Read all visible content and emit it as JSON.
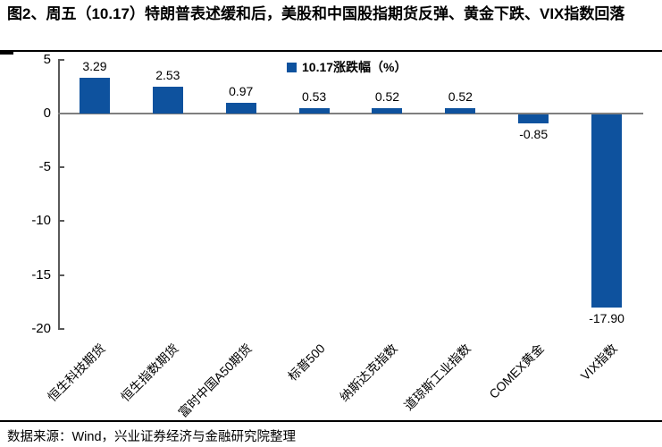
{
  "title": "图2、周五（10.17）特朗普表述缓和后，美股和中国股指期货反弹、黄金下跌、VIX指数回落",
  "legend": {
    "label": "10.17涨跌幅（%）"
  },
  "footer": {
    "source": "数据来源：Wind，兴业证券经济与金融研究院整理"
  },
  "colors": {
    "bar": "#0e529e",
    "zero_line": "#7f7f7f",
    "axis": "#595959",
    "text": "#000000"
  },
  "chart_data": {
    "type": "bar",
    "title": "10.17涨跌幅（%）",
    "categories": [
      "恒生科技期货",
      "恒生指数期货",
      "富时中国A50期货",
      "标普500",
      "纳斯达克指数",
      "道琼斯工业指数",
      "COMEX黄金",
      "VIX指数"
    ],
    "values": [
      3.29,
      2.53,
      0.97,
      0.53,
      0.52,
      0.52,
      -0.85,
      -17.9
    ],
    "value_labels": [
      "3.29",
      "2.53",
      "0.97",
      "0.53",
      "0.52",
      "0.52",
      "-0.85",
      "-17.90"
    ],
    "xlabel": "",
    "ylabel": "",
    "ylim": [
      -20,
      5
    ],
    "yticks": [
      5,
      0,
      -5,
      -10,
      -15,
      -20
    ],
    "grid": false,
    "legend_position": "top-center",
    "legend_entries": [
      "10.17涨跌幅（%）"
    ],
    "bar_color": "#0e529e"
  }
}
